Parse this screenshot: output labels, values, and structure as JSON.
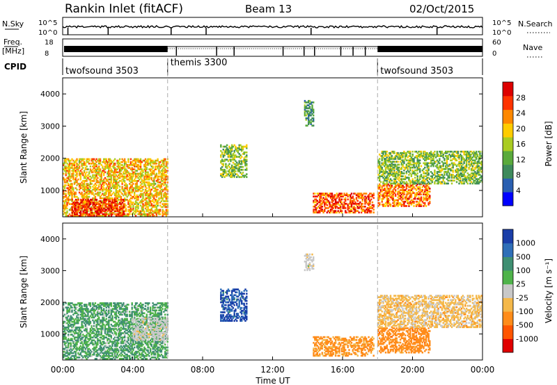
{
  "header": {
    "title": "Rankin Inlet (fitACF)",
    "beam": "Beam 13",
    "date": "02/Oct/2015"
  },
  "noise_panel": {
    "left_label": "N.Sky",
    "left_ticks": [
      "10^5",
      "10^0"
    ],
    "right_label": "N.Search",
    "right_ticks": [
      "10^5",
      "10^0"
    ]
  },
  "freq_panel": {
    "left_label_1": "Freq.",
    "left_label_2": "[MHz]",
    "left_ticks": [
      "18",
      "8"
    ],
    "right_label": "Nave",
    "right_ticks": [
      "60",
      "0"
    ]
  },
  "cpid": {
    "label": "CPID",
    "modes": [
      {
        "name": "twofsound 3503",
        "start_hour": 0,
        "end_hour": 6
      },
      {
        "name": "themis 3300",
        "start_hour": 6,
        "end_hour": 18
      },
      {
        "name": "twofsound 3503",
        "start_hour": 18,
        "end_hour": 24
      }
    ]
  },
  "x_axis": {
    "label": "Time UT",
    "ticks": [
      "00:00",
      "04:00",
      "08:00",
      "12:00",
      "16:00",
      "20:00",
      "00:00"
    ],
    "range_hours": [
      0,
      24
    ]
  },
  "chart_data": [
    {
      "type": "heatmap",
      "name": "power",
      "ylabel": "Slant Range [km]",
      "yticks": [
        "1000",
        "2000",
        "3000",
        "4000"
      ],
      "ylim": [
        180,
        4500
      ],
      "colorbar": {
        "label": "Power [dB]",
        "ticks": [
          "4",
          "8",
          "12",
          "16",
          "20",
          "24",
          "28"
        ],
        "range": [
          0,
          32
        ],
        "colors": [
          "#0000ff",
          "#2a5fb0",
          "#3e8a5c",
          "#5aaa3c",
          "#aacc22",
          "#ffcc00",
          "#ff8800",
          "#ff3300",
          "#dd0000"
        ]
      },
      "regions": [
        {
          "x": [
            0.0,
            6.0
          ],
          "y": [
            200,
            2000
          ],
          "value": 20
        },
        {
          "x": [
            0.5,
            3.5
          ],
          "y": [
            200,
            700
          ],
          "value": 28
        },
        {
          "x": [
            9.0,
            10.5
          ],
          "y": [
            1400,
            2400
          ],
          "value": 14
        },
        {
          "x": [
            13.8,
            14.3
          ],
          "y": [
            3000,
            3800
          ],
          "value": 10
        },
        {
          "x": [
            14.3,
            17.8
          ],
          "y": [
            300,
            900
          ],
          "value": 26
        },
        {
          "x": [
            18.0,
            21.0
          ],
          "y": [
            500,
            1200
          ],
          "value": 24
        },
        {
          "x": [
            18.0,
            24.0
          ],
          "y": [
            1200,
            2200
          ],
          "value": 14
        }
      ]
    },
    {
      "type": "heatmap",
      "name": "velocity",
      "ylabel": "Slant Range [km]",
      "yticks": [
        "1000",
        "2000",
        "3000",
        "4000"
      ],
      "ylim": [
        180,
        4500
      ],
      "colorbar": {
        "label": "Velocity [m s⁻¹]",
        "ticks": [
          "1000",
          "500",
          "100",
          "25",
          "-25",
          "-100",
          "-500",
          "-1000"
        ],
        "colors": [
          "#1a3ea8",
          "#2f6fb8",
          "#3f8f72",
          "#4fb34a",
          "#c8c8c8",
          "#f4b84a",
          "#ff8c1a",
          "#ff5500",
          "#e00000"
        ]
      },
      "regions": [
        {
          "x": [
            0.0,
            6.0
          ],
          "y": [
            200,
            2000
          ],
          "value": 100
        },
        {
          "x": [
            4.0,
            6.0
          ],
          "y": [
            800,
            1500
          ],
          "value": 0
        },
        {
          "x": [
            9.0,
            10.5
          ],
          "y": [
            1400,
            2400
          ],
          "value": 1000
        },
        {
          "x": [
            13.8,
            14.3
          ],
          "y": [
            3000,
            3500
          ],
          "value": 0
        },
        {
          "x": [
            14.3,
            17.8
          ],
          "y": [
            300,
            900
          ],
          "value": -150
        },
        {
          "x": [
            18.0,
            21.0
          ],
          "y": [
            400,
            1200
          ],
          "value": -300
        },
        {
          "x": [
            18.0,
            24.0
          ],
          "y": [
            1200,
            2200
          ],
          "value": -50
        }
      ]
    }
  ]
}
